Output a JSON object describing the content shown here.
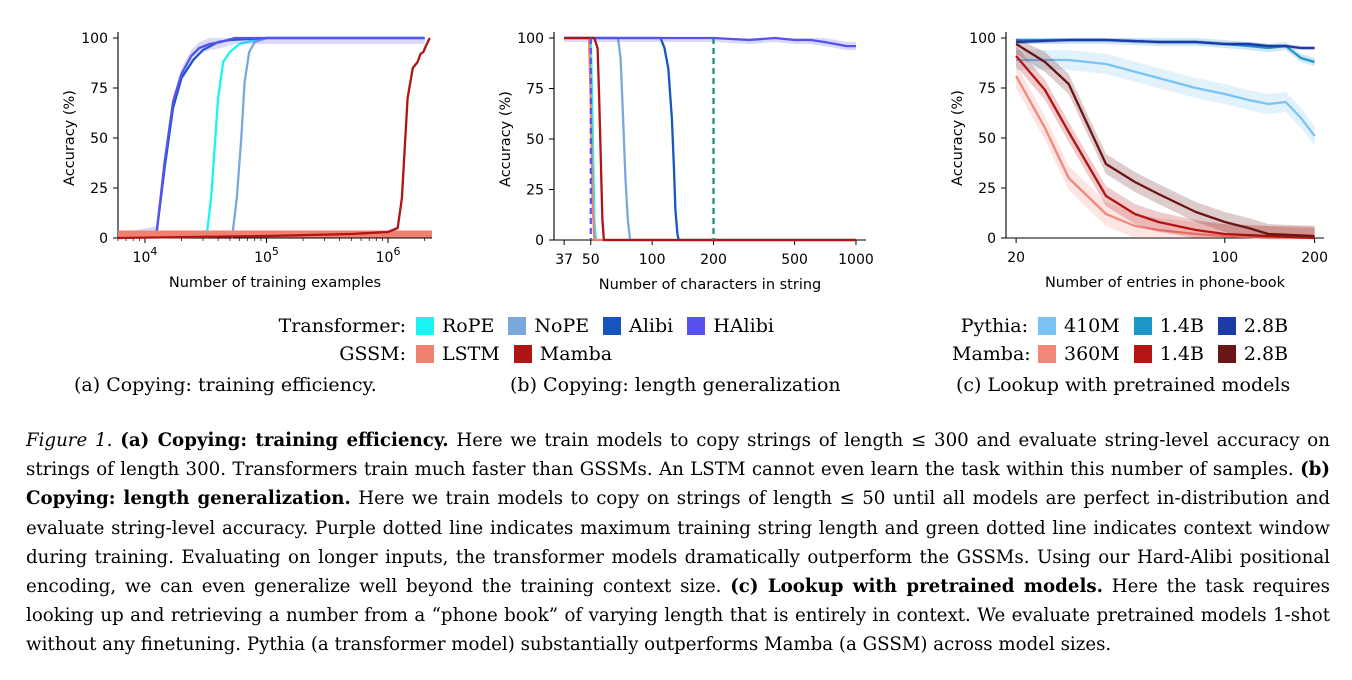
{
  "colors": {
    "rope": "#19f5f5",
    "nope": "#7aa8da",
    "alibi": "#1756bf",
    "halibi": "#5751ee",
    "lstm": "#f08070",
    "mamba": "#b01515",
    "p410m": "#7cc3f5",
    "p14b": "#1e97c8",
    "p28b": "#1c3aa8",
    "m360m": "#f3877a",
    "m14b": "#b41414",
    "m28b": "#6a1616",
    "ctx_line": "#1a8a80"
  },
  "chart_data": [
    {
      "type": "line",
      "id": "a",
      "xlabel": "Number of training examples",
      "ylabel": "Accuracy (%)",
      "xscale": "log",
      "xlim": [
        6000,
        2300000
      ],
      "ylim": [
        0,
        100
      ],
      "xtick_values": [
        10000,
        100000,
        1000000
      ],
      "xtick_labels": [
        "10^4",
        "10^5",
        "10^6"
      ],
      "ytick_values": [
        0,
        25,
        50,
        75,
        100
      ],
      "ytick_labels": [
        "0",
        "25",
        "50",
        "75",
        "100"
      ],
      "series": [
        {
          "name": "RoPE",
          "color_key": "rope",
          "points": [
            [
              32000,
              0
            ],
            [
              35000,
              20
            ],
            [
              40000,
              70
            ],
            [
              44000,
              88
            ],
            [
              50000,
              93
            ],
            [
              60000,
              97
            ],
            [
              80000,
              99
            ],
            [
              100000,
              100
            ],
            [
              2000000,
              100
            ]
          ]
        },
        {
          "name": "NoPE",
          "color_key": "nope",
          "points": [
            [
              52000,
              0
            ],
            [
              57000,
              20
            ],
            [
              62000,
              50
            ],
            [
              66000,
              78
            ],
            [
              72000,
              93
            ],
            [
              80000,
              98
            ],
            [
              100000,
              100
            ],
            [
              2000000,
              100
            ]
          ]
        },
        {
          "name": "Alibi",
          "color_key": "alibi",
          "points": [
            [
              7000,
              0
            ],
            [
              12500,
              3
            ],
            [
              14500,
              35
            ],
            [
              17000,
              65
            ],
            [
              20000,
              80
            ],
            [
              25000,
              89
            ],
            [
              30000,
              94
            ],
            [
              40000,
              98
            ],
            [
              50000,
              99
            ],
            [
              100000,
              100
            ],
            [
              2000000,
              100
            ]
          ]
        },
        {
          "name": "HAlibi",
          "color_key": "halibi",
          "band": 3,
          "points": [
            [
              7000,
              0
            ],
            [
              12500,
              3
            ],
            [
              14500,
              38
            ],
            [
              17000,
              68
            ],
            [
              20000,
              82
            ],
            [
              24000,
              91
            ],
            [
              28000,
              95
            ],
            [
              34000,
              97
            ],
            [
              42000,
              98
            ],
            [
              55000,
              100
            ],
            [
              100000,
              100
            ],
            [
              2000000,
              100
            ]
          ]
        },
        {
          "name": "LSTM",
          "color_key": "lstm",
          "width": 7,
          "points": [
            [
              6000,
              2
            ],
            [
              2300000,
              2
            ]
          ]
        },
        {
          "name": "Mamba",
          "color_key": "mamba",
          "points": [
            [
              6000,
              0
            ],
            [
              100000,
              1
            ],
            [
              500000,
              2
            ],
            [
              1000000,
              3
            ],
            [
              1200000,
              5
            ],
            [
              1300000,
              20
            ],
            [
              1450000,
              70
            ],
            [
              1600000,
              85
            ],
            [
              1750000,
              88
            ],
            [
              1850000,
              92
            ],
            [
              1950000,
              93
            ],
            [
              2050000,
              96
            ],
            [
              2200000,
              100
            ]
          ]
        }
      ]
    },
    {
      "type": "line",
      "id": "b",
      "xlabel": "Number of characters in string",
      "ylabel": "Accuracy (%)",
      "xscale": "log",
      "xlim": [
        33,
        1120
      ],
      "ylim": [
        0,
        100
      ],
      "xtick_values": [
        37,
        50,
        100,
        200,
        500,
        1000
      ],
      "xtick_labels": [
        "37",
        "50",
        "100",
        "200",
        "500",
        "1000"
      ],
      "ytick_values": [
        0,
        25,
        50,
        75,
        100
      ],
      "ytick_labels": [
        "0",
        "25",
        "50",
        "75",
        "100"
      ],
      "vlines": [
        {
          "x": 50,
          "color_key": "halibi",
          "label": "max training string length"
        },
        {
          "x": 200,
          "color_key": "ctx_line",
          "label": "training context window"
        }
      ],
      "series": [
        {
          "name": "RoPE",
          "color_key": "rope",
          "points": [
            [
              37,
              100
            ],
            [
              50,
              100
            ],
            [
              51,
              60
            ],
            [
              52,
              10
            ],
            [
              53,
              0
            ],
            [
              1000,
              0
            ]
          ]
        },
        {
          "name": "NoPE",
          "color_key": "nope",
          "points": [
            [
              37,
              100
            ],
            [
              68,
              100
            ],
            [
              70,
              90
            ],
            [
              72,
              60
            ],
            [
              74,
              30
            ],
            [
              76,
              10
            ],
            [
              78,
              0
            ],
            [
              1000,
              0
            ]
          ]
        },
        {
          "name": "Alibi",
          "color_key": "alibi",
          "points": [
            [
              37,
              100
            ],
            [
              110,
              100
            ],
            [
              115,
              95
            ],
            [
              120,
              85
            ],
            [
              125,
              60
            ],
            [
              128,
              35
            ],
            [
              130,
              15
            ],
            [
              133,
              3
            ],
            [
              135,
              0
            ],
            [
              1000,
              0
            ]
          ]
        },
        {
          "name": "HAlibi",
          "color_key": "halibi",
          "band": 2,
          "points": [
            [
              37,
              100
            ],
            [
              200,
              100
            ],
            [
              300,
              99
            ],
            [
              400,
              100
            ],
            [
              500,
              99
            ],
            [
              600,
              99
            ],
            [
              700,
              98
            ],
            [
              800,
              97
            ],
            [
              900,
              96
            ],
            [
              1000,
              96
            ]
          ]
        },
        {
          "name": "LSTM",
          "color_key": "lstm",
          "points": [
            [
              37,
              100
            ],
            [
              49,
              100
            ],
            [
              50,
              70
            ],
            [
              51,
              20
            ],
            [
              52,
              0
            ],
            [
              1000,
              0
            ]
          ]
        },
        {
          "name": "Mamba",
          "color_key": "mamba",
          "points": [
            [
              37,
              100
            ],
            [
              52,
              100
            ],
            [
              54,
              95
            ],
            [
              55,
              70
            ],
            [
              56,
              40
            ],
            [
              57,
              10
            ],
            [
              58,
              0
            ],
            [
              1000,
              0
            ]
          ]
        }
      ]
    },
    {
      "type": "line",
      "id": "c",
      "xlabel": "Number of entries in phone-book",
      "ylabel": "Accuracy (%)",
      "xscale": "log",
      "xlim": [
        18.5,
        215
      ],
      "ylim": [
        0,
        100
      ],
      "xtick_values": [
        20,
        100,
        200
      ],
      "xtick_labels": [
        "20",
        "100",
        "200"
      ],
      "ytick_values": [
        0,
        25,
        50,
        75,
        100
      ],
      "ytick_labels": [
        "0",
        "25",
        "50",
        "75",
        "100"
      ],
      "series": [
        {
          "name": "410M",
          "color_key": "p410m",
          "band": 5,
          "points": [
            [
              20,
              89
            ],
            [
              30,
              89
            ],
            [
              40,
              87
            ],
            [
              60,
              80
            ],
            [
              80,
              75
            ],
            [
              100,
              72
            ],
            [
              120,
              69
            ],
            [
              140,
              67
            ],
            [
              160,
              68
            ],
            [
              180,
              60
            ],
            [
              200,
              51
            ]
          ]
        },
        {
          "name": "1.4B",
          "color_key": "p14b",
          "band": 2,
          "points": [
            [
              20,
              99
            ],
            [
              40,
              99
            ],
            [
              60,
              98
            ],
            [
              80,
              98
            ],
            [
              100,
              97
            ],
            [
              120,
              96
            ],
            [
              140,
              95
            ],
            [
              160,
              96
            ],
            [
              180,
              90
            ],
            [
              200,
              88
            ]
          ]
        },
        {
          "name": "2.8B",
          "color_key": "p28b",
          "band": 1,
          "points": [
            [
              20,
              98
            ],
            [
              30,
              99
            ],
            [
              40,
              99
            ],
            [
              60,
              98
            ],
            [
              80,
              98
            ],
            [
              100,
              97
            ],
            [
              120,
              97
            ],
            [
              140,
              96
            ],
            [
              160,
              96
            ],
            [
              180,
              95
            ],
            [
              200,
              95
            ]
          ]
        },
        {
          "name": "360M",
          "color_key": "m360m",
          "band": 6,
          "points": [
            [
              20,
              81
            ],
            [
              25,
              55
            ],
            [
              30,
              30
            ],
            [
              40,
              12
            ],
            [
              50,
              6
            ],
            [
              60,
              4
            ],
            [
              80,
              2
            ],
            [
              100,
              1
            ],
            [
              140,
              0
            ],
            [
              200,
              0
            ]
          ]
        },
        {
          "name": "1.4B",
          "color_key": "m14b",
          "band": 5,
          "points": [
            [
              20,
              91
            ],
            [
              25,
              74
            ],
            [
              30,
              53
            ],
            [
              40,
              21
            ],
            [
              50,
              12
            ],
            [
              60,
              8
            ],
            [
              80,
              4
            ],
            [
              100,
              2
            ],
            [
              140,
              1
            ],
            [
              200,
              0
            ]
          ]
        },
        {
          "name": "2.8B",
          "color_key": "m28b",
          "band": 5,
          "points": [
            [
              20,
              97
            ],
            [
              25,
              88
            ],
            [
              30,
              77
            ],
            [
              40,
              37
            ],
            [
              50,
              28
            ],
            [
              60,
              22
            ],
            [
              80,
              13
            ],
            [
              100,
              8
            ],
            [
              120,
              5
            ],
            [
              140,
              2
            ],
            [
              200,
              1
            ]
          ]
        }
      ]
    }
  ],
  "legend_a": {
    "transformer_label": "Transformer:",
    "gssm_label": "GSSM:",
    "rope": "RoPE",
    "nope": "NoPE",
    "alibi": "Alibi",
    "halibi": "HAlibi",
    "lstm": "LSTM",
    "mamba": "Mamba"
  },
  "legend_c": {
    "pythia_label": "Pythia:",
    "mamba_label": "Mamba:",
    "p410m": "410M",
    "p14b": "1.4B",
    "p28b": "2.8B",
    "m360m": "360M",
    "m14b": "1.4B",
    "m28b": "2.8B"
  },
  "subcaptions": {
    "a": "(a) Copying: training efficiency.",
    "b": "(b) Copying: length generalization",
    "c": "(c) Lookup with pretrained models"
  },
  "caption": {
    "fig_label": "Figure 1.",
    "a_title": "(a) Copying: training efficiency.",
    "a_text": "Here we train models to copy strings of length ≤ 300 and evaluate string-level accuracy on strings of length 300. Transformers train much faster than GSSMs. An LSTM cannot even learn the task within this number of samples.",
    "b_title": "(b) Copying: length generalization.",
    "b_text": "Here we train models to copy on strings of length ≤ 50 until all models are perfect in-distribution and evaluate string-level accuracy. Purple dotted line indicates maximum training string length and green dotted line indicates context window during training. Evaluating on longer inputs, the transformer models dramatically outperform the GSSMs. Using our Hard-Alibi positional encoding, we can even generalize well beyond the training context size.",
    "c_title": "(c) Lookup with pretrained models.",
    "c_text": "Here the task requires looking up and retrieving a number from a “phone book” of varying length that is entirely in context. We evaluate pretrained models 1-shot without any finetuning. Pythia (a transformer model) substantially outperforms Mamba (a GSSM) across model sizes."
  }
}
